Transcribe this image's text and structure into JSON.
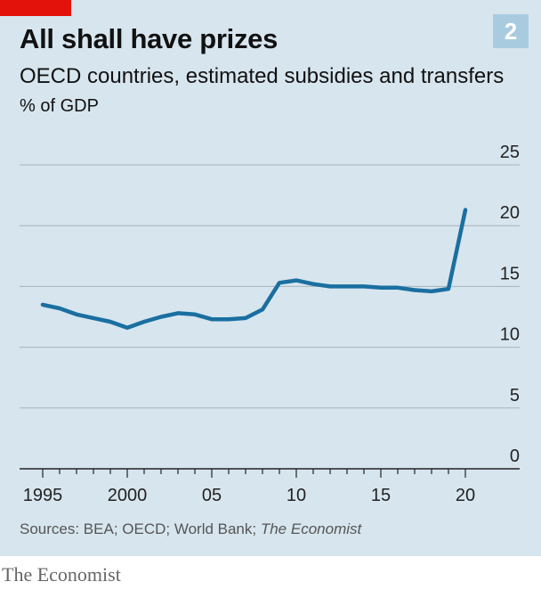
{
  "header": {
    "figure_number": "2",
    "title": "All shall have prizes",
    "subtitle": "OECD countries, estimated subsidies and transfers",
    "unit": "% of GDP"
  },
  "footer": {
    "source_prefix": "Sources: BEA; OECD; World Bank; ",
    "source_emph": "The Economist",
    "brand": "The Economist"
  },
  "colors": {
    "line": "#1a6fa0",
    "background": "#d7e5ee",
    "gridline": "#a9b3bb",
    "accent": "#e3120b"
  },
  "chart_data": {
    "type": "line",
    "title": "All shall have prizes",
    "subtitle": "OECD countries, estimated subsidies and transfers",
    "ylabel": "% of GDP",
    "xlim": [
      1995,
      2020
    ],
    "ylim": [
      0,
      25
    ],
    "y_ticks": [
      0,
      5,
      10,
      15,
      20,
      25
    ],
    "y_tick_labels": [
      "0",
      "5",
      "10",
      "15",
      "20",
      "25"
    ],
    "x_ticks": [
      1995,
      1996,
      1997,
      1998,
      1999,
      2000,
      2001,
      2002,
      2003,
      2004,
      2005,
      2006,
      2007,
      2008,
      2009,
      2010,
      2011,
      2012,
      2013,
      2014,
      2015,
      2016,
      2017,
      2018,
      2019,
      2020
    ],
    "x_tick_labels": [
      {
        "x": 1995,
        "label": "1995"
      },
      {
        "x": 2000,
        "label": "2000"
      },
      {
        "x": 2005,
        "label": "05"
      },
      {
        "x": 2010,
        "label": "10"
      },
      {
        "x": 2015,
        "label": "15"
      },
      {
        "x": 2020,
        "label": "20"
      }
    ],
    "grid": true,
    "y_axis_side": "right",
    "series": [
      {
        "x": [
          1995,
          1996,
          1997,
          1998,
          1999,
          2000,
          2001,
          2002,
          2003,
          2004,
          2005,
          2006,
          2007,
          2008,
          2009,
          2010,
          2011,
          2012,
          2013,
          2014,
          2015,
          2016,
          2017,
          2018,
          2019,
          2020
        ],
        "values": [
          13.5,
          13.2,
          12.7,
          12.4,
          12.1,
          11.6,
          12.1,
          12.5,
          12.8,
          12.7,
          12.3,
          12.3,
          12.4,
          13.1,
          15.3,
          15.5,
          15.2,
          15.0,
          15.0,
          15.0,
          14.9,
          14.9,
          14.7,
          14.6,
          14.8,
          21.3
        ]
      }
    ]
  }
}
